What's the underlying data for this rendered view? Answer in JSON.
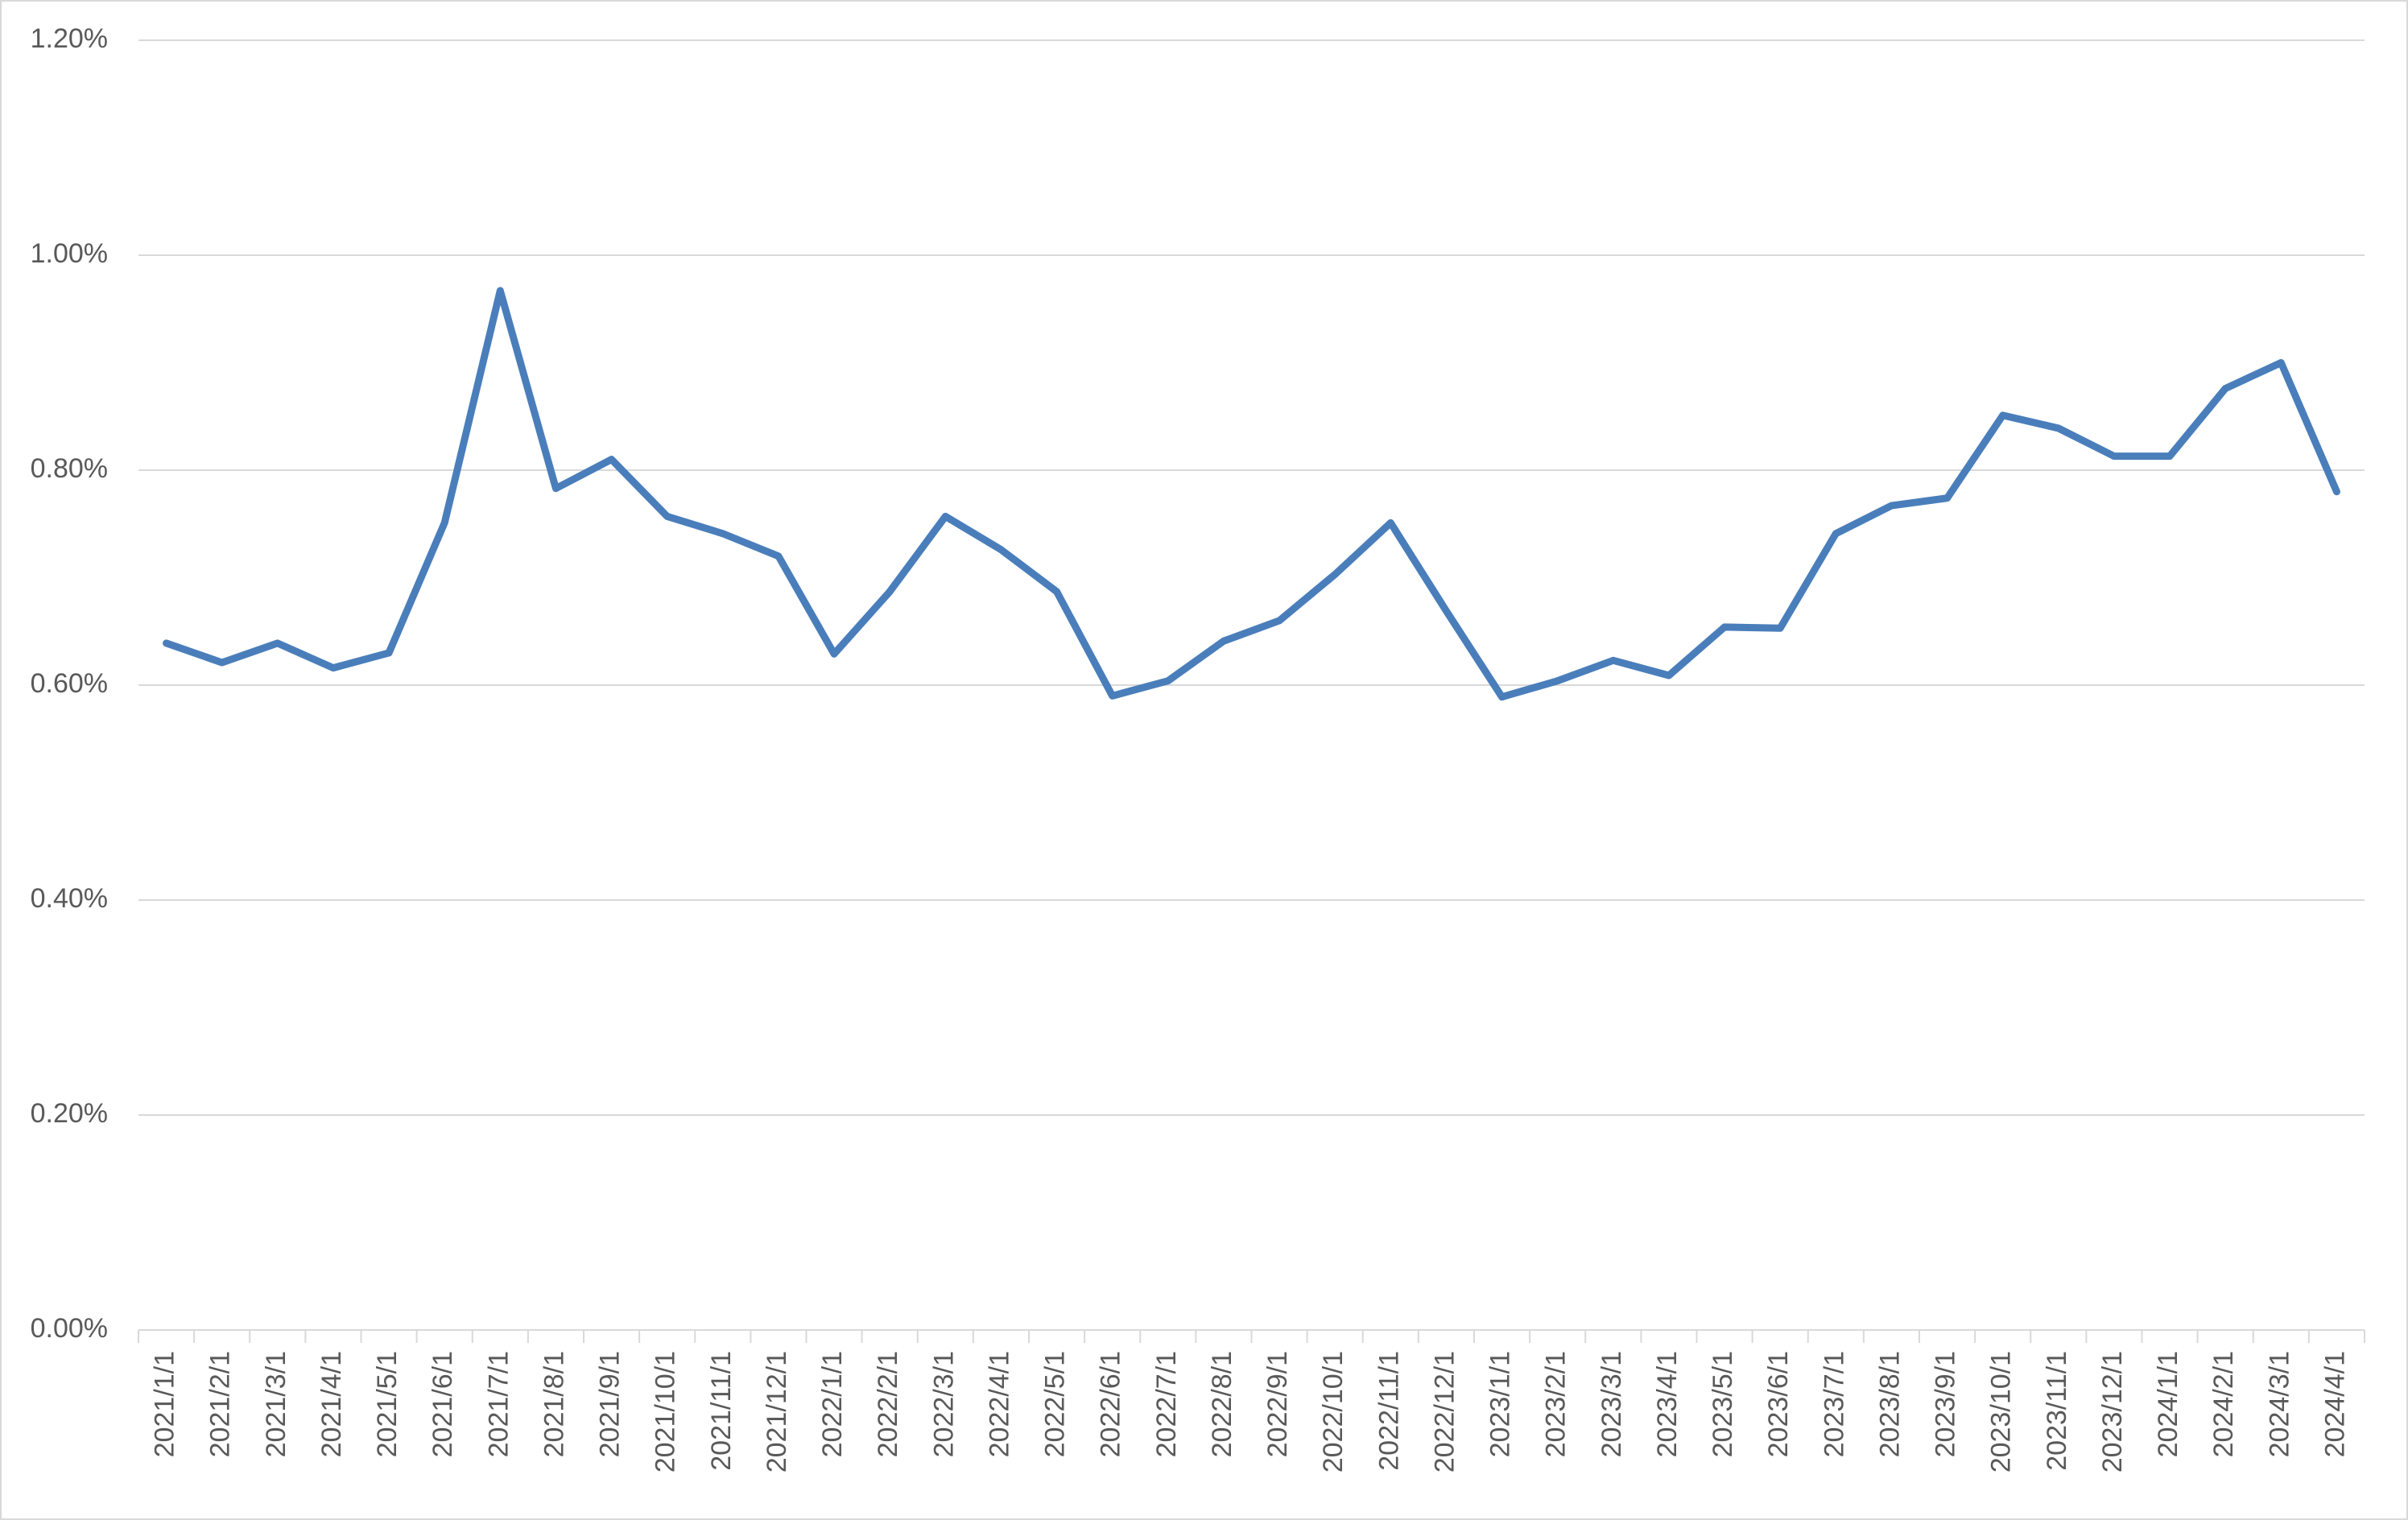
{
  "chart_data": {
    "type": "line",
    "categories": [
      "2021/1/1",
      "2021/2/1",
      "2021/3/1",
      "2021/4/1",
      "2021/5/1",
      "2021/6/1",
      "2021/7/1",
      "2021/8/1",
      "2021/9/1",
      "2021/10/1",
      "2021/11/1",
      "2021/12/1",
      "2022/1/1",
      "2022/2/1",
      "2022/3/1",
      "2022/4/1",
      "2022/5/1",
      "2022/6/1",
      "2022/7/1",
      "2022/8/1",
      "2022/9/1",
      "2022/10/1",
      "2022/11/1",
      "2022/12/1",
      "2023/1/1",
      "2023/2/1",
      "2023/3/1",
      "2023/4/1",
      "2023/5/1",
      "2023/6/1",
      "2023/7/1",
      "2023/8/1",
      "2023/9/1",
      "2023/10/1",
      "2023/11/1",
      "2023/12/1",
      "2024/1/1",
      "2024/2/1",
      "2024/3/1",
      "2024/4/1"
    ],
    "values": [
      0.639,
      0.621,
      0.639,
      0.616,
      0.63,
      0.751,
      0.967,
      0.783,
      0.81,
      0.757,
      0.741,
      0.72,
      0.629,
      0.687,
      0.757,
      0.726,
      0.687,
      0.59,
      0.604,
      0.641,
      0.66,
      0.703,
      0.751,
      0.669,
      0.589,
      0.604,
      0.623,
      0.609,
      0.654,
      0.653,
      0.741,
      0.767,
      0.774,
      0.851,
      0.839,
      0.813,
      0.813,
      0.876,
      0.9,
      0.78
    ],
    "color": "#4a7ebb",
    "ylim": [
      0,
      1.2
    ],
    "yticks": [
      {
        "value": 0,
        "label": "0.00%"
      },
      {
        "value": 0.2,
        "label": "0.20%"
      },
      {
        "value": 0.4,
        "label": "0.40%"
      },
      {
        "value": 0.6,
        "label": "0.60%"
      },
      {
        "value": 0.8,
        "label": "0.80%"
      },
      {
        "value": 1.0,
        "label": "1.00%"
      },
      {
        "value": 1.2,
        "label": "1.20%"
      }
    ],
    "grid": true
  }
}
